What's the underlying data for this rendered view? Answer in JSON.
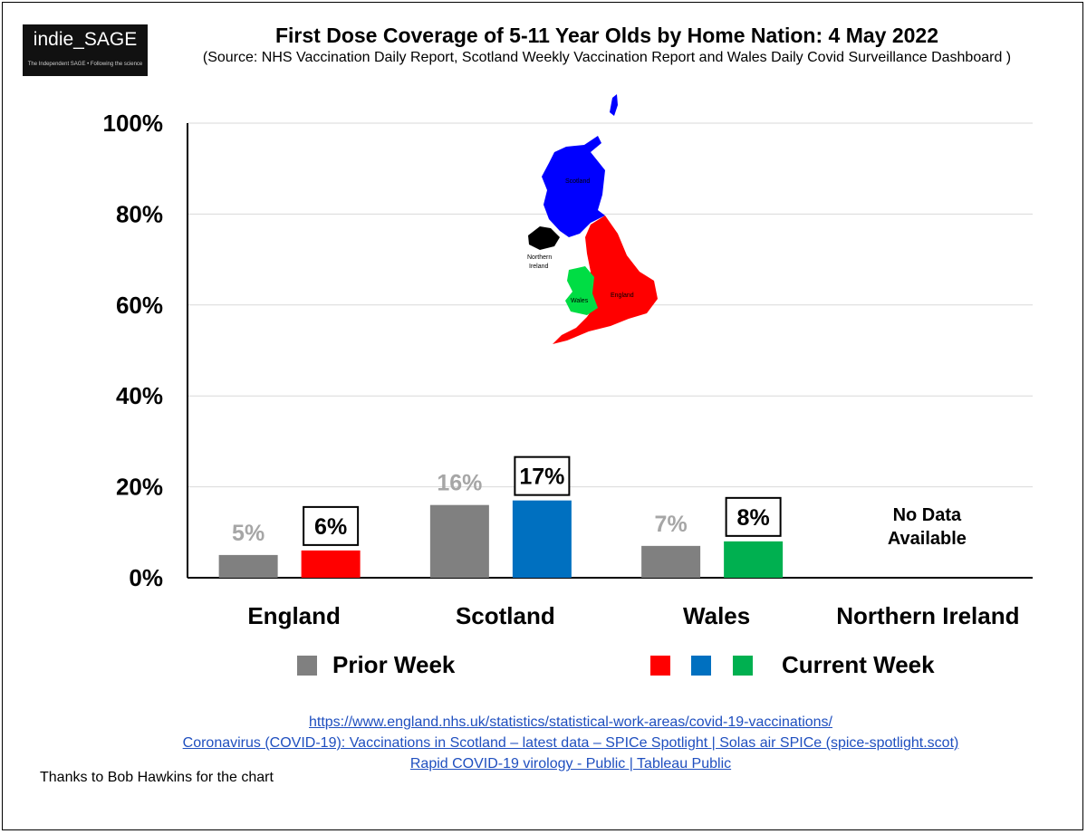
{
  "logo": {
    "main": "indie_SAGE",
    "tagline": "The Independent SAGE • Following the science"
  },
  "chart_data": {
    "type": "bar",
    "title": "First Dose Coverage of 5-11 Year Olds by Home Nation: 4 May 2022",
    "subtitle": "(Source: NHS Vaccination Daily Report, Scotland Weekly Vaccination Report and Wales Daily Covid Surveillance Dashboard )",
    "categories": [
      "England",
      "Scotland",
      "Wales",
      "Northern Ireland"
    ],
    "series": [
      {
        "name": "Prior Week",
        "values": [
          5,
          16,
          7,
          null
        ],
        "labels": [
          "5%",
          "16%",
          "7%",
          ""
        ]
      },
      {
        "name": "Current Week",
        "values": [
          6,
          17,
          8,
          null
        ],
        "labels": [
          "6%",
          "17%",
          "8%",
          ""
        ]
      }
    ],
    "ylim": [
      0,
      100
    ],
    "yticks": [
      0,
      20,
      40,
      60,
      80,
      100
    ],
    "ytick_labels": [
      "0%",
      "20%",
      "40%",
      "60%",
      "80%",
      "100%"
    ],
    "grid": true,
    "colors": {
      "prior": "#808080",
      "england": "#ff0000",
      "scotland": "#0070c0",
      "wales": "#00b050",
      "ni": "#000000"
    },
    "no_data_text": [
      "No Data",
      "Available"
    ],
    "legend": {
      "prior_label": "Prior Week",
      "current_label": "Current Week",
      "position": "bottom"
    },
    "map_labels": {
      "scotland": "Scotland",
      "northern_ireland": [
        "Northern",
        "Ireland"
      ],
      "wales": "Wales",
      "england": "England"
    }
  },
  "links": [
    "https://www.england.nhs.uk/statistics/statistical-work-areas/covid-19-vaccinations/",
    "Coronavirus (COVID-19): Vaccinations in Scotland – latest data – SPICe Spotlight | Solas air SPICe (spice-spotlight.scot)",
    "Rapid COVID-19 virology - Public | Tableau Public"
  ],
  "credit": "Thanks to Bob Hawkins for the chart"
}
